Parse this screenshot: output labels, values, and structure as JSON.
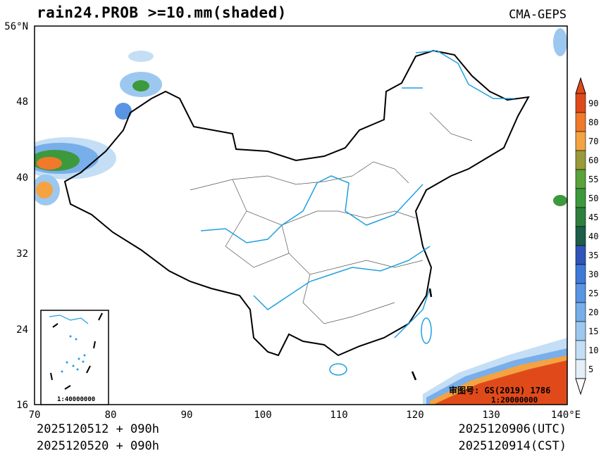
{
  "header": {
    "title": "rain24.PROB >=10.mm(shaded)",
    "source": "CMA-GEPS"
  },
  "axes": {
    "lat_ticks": [
      "56°N",
      "48",
      "40",
      "32",
      "24",
      "16"
    ],
    "lon_ticks": [
      "70",
      "80",
      "90",
      "100",
      "110",
      "120",
      "130",
      "140°E"
    ]
  },
  "colorbar": {
    "levels": [
      "90",
      "80",
      "70",
      "60",
      "55",
      "50",
      "45",
      "40",
      "35",
      "30",
      "25",
      "20",
      "15",
      "10",
      "5"
    ],
    "colors": [
      "#e04a1a",
      "#f07a2a",
      "#f3a342",
      "#9a9a3a",
      "#5aa23a",
      "#3c9a3c",
      "#2e7f3e",
      "#1c5e48",
      "#2f55b8",
      "#3f79d8",
      "#5a95e4",
      "#78aeea",
      "#9cc8f0",
      "#c4def5",
      "#e4eff9"
    ]
  },
  "stamp": {
    "review_no": "审图号: GS(2019) 1786",
    "scale": "1:20000000",
    "inset_scale": "1:40000000"
  },
  "footer": {
    "init_time_utc": "2025120512 + 090h",
    "init_time_cst": "2025120520 + 090h",
    "valid_time_utc": "2025120906(UTC)",
    "valid_time_cst": "2025120914(CST)"
  },
  "colors": {
    "river": "#1ea0e0",
    "border": "#000000",
    "province": "#555555"
  }
}
